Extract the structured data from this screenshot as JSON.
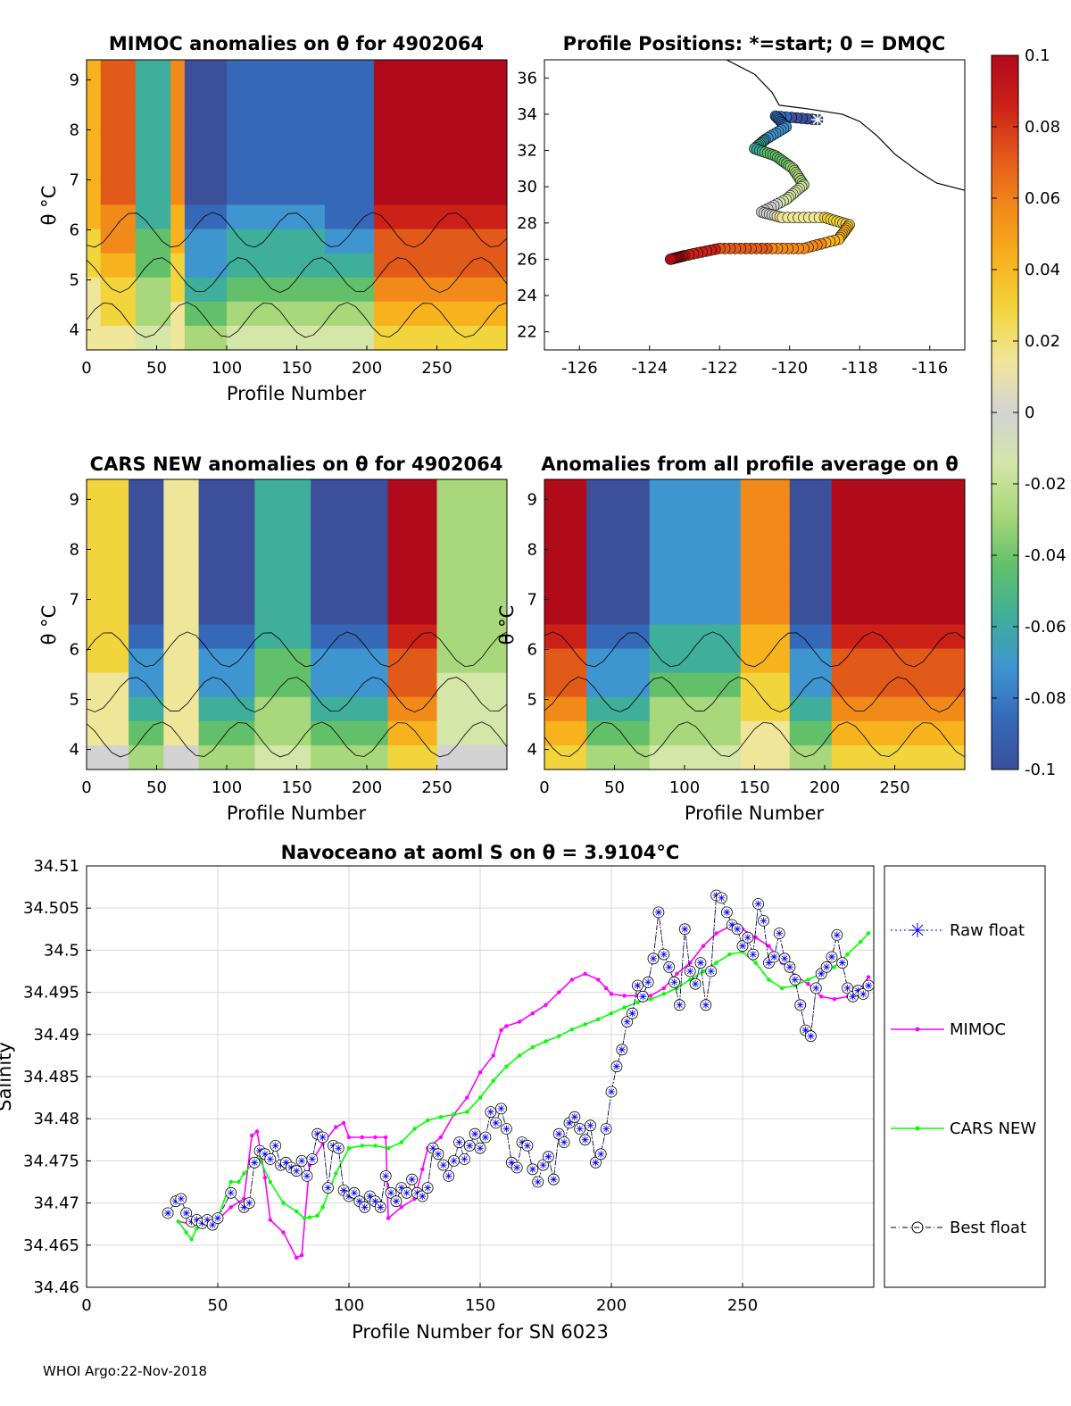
{
  "footer": "WHOI Argo:22-Nov-2018",
  "colors": {
    "line": "#000000",
    "grid": "#d9d9d9",
    "mimoc": "#ff00ff",
    "cars": "#00ff00",
    "raw": "#0000ff",
    "best": "#000000",
    "scale": [
      "#3b4f9a",
      "#3569b8",
      "#3f95d0",
      "#3fae9a",
      "#63c06a",
      "#a9d77b",
      "#d4e6a8",
      "#d3d3d3",
      "#f0e69a",
      "#f2d53d",
      "#f7b21e",
      "#f28a1a",
      "#e25a1a",
      "#cc2118",
      "#b10a1b"
    ]
  },
  "colorbar": {
    "ticks": [
      "0.1",
      "0.08",
      "0.06",
      "0.04",
      "0.02",
      "0",
      "-0.02",
      "-0.04",
      "-0.06",
      "-0.08",
      "-0.1"
    ]
  },
  "chart_data": [
    {
      "type": "heatmap",
      "id": "mimoc_anom",
      "title": "MIMOC anomalies on θ  for 4902064",
      "xlabel": "Profile Number",
      "ylabel": "θ °C",
      "xlim": [
        0,
        300
      ],
      "ylim": [
        3.6,
        9.4
      ],
      "xticks": [
        "0",
        "50",
        "100",
        "150",
        "200",
        "250"
      ],
      "yticks": [
        "4",
        "5",
        "6",
        "7",
        "8",
        "9"
      ],
      "clim": [
        -0.1,
        0.1
      ],
      "bands": [
        {
          "x0": 0,
          "x1": 10,
          "v": 0.04
        },
        {
          "x0": 10,
          "x1": 35,
          "v": 0.07
        },
        {
          "x0": 35,
          "x1": 60,
          "v": -0.06
        },
        {
          "x0": 60,
          "x1": 70,
          "v": 0.05
        },
        {
          "x0": 70,
          "x1": 100,
          "v": -0.1
        },
        {
          "x0": 100,
          "x1": 170,
          "v": -0.08
        },
        {
          "x0": 170,
          "x1": 205,
          "v": -0.09
        },
        {
          "x0": 205,
          "x1": 300,
          "v": 0.1
        }
      ]
    },
    {
      "type": "scatter",
      "id": "positions",
      "title": "Profile Positions: *=start; 0 = DMQC",
      "xlim": [
        -127,
        -115
      ],
      "ylim": [
        21,
        37
      ],
      "xticks": [
        "-126",
        "-124",
        "-122",
        "-120",
        "-118",
        "-116"
      ],
      "yticks": [
        "22",
        "24",
        "26",
        "28",
        "30",
        "32",
        "34",
        "36"
      ],
      "coast": [
        [
          -121.8,
          37.0
        ],
        [
          -121.0,
          36.2
        ],
        [
          -120.5,
          35.2
        ],
        [
          -120.3,
          34.5
        ],
        [
          -119.5,
          34.3
        ],
        [
          -118.5,
          34.0
        ],
        [
          -118.0,
          33.6
        ],
        [
          -117.5,
          32.8
        ],
        [
          -117.0,
          31.8
        ],
        [
          -116.3,
          30.8
        ],
        [
          -115.8,
          30.2
        ],
        [
          -115.0,
          29.8
        ]
      ],
      "track": [
        {
          "lon": -119.2,
          "lat": 33.7
        },
        {
          "lon": -120.4,
          "lat": 33.9
        },
        {
          "lon": -120.1,
          "lat": 33.3
        },
        {
          "lon": -120.7,
          "lat": 32.6
        },
        {
          "lon": -121.0,
          "lat": 32.1
        },
        {
          "lon": -120.4,
          "lat": 31.7
        },
        {
          "lon": -119.9,
          "lat": 31.0
        },
        {
          "lon": -119.6,
          "lat": 30.1
        },
        {
          "lon": -120.1,
          "lat": 29.3
        },
        {
          "lon": -120.8,
          "lat": 28.6
        },
        {
          "lon": -120.2,
          "lat": 28.3
        },
        {
          "lon": -119.0,
          "lat": 28.3
        },
        {
          "lon": -118.3,
          "lat": 27.9
        },
        {
          "lon": -118.6,
          "lat": 27.1
        },
        {
          "lon": -119.6,
          "lat": 26.6
        },
        {
          "lon": -120.8,
          "lat": 26.6
        },
        {
          "lon": -122.0,
          "lat": 26.6
        },
        {
          "lon": -123.0,
          "lat": 26.2
        },
        {
          "lon": -123.4,
          "lat": 26.0
        }
      ]
    },
    {
      "type": "heatmap",
      "id": "cars_anom",
      "title": "CARS NEW anomalies on θ for 4902064",
      "xlabel": "Profile Number",
      "ylabel": "θ °C",
      "xlim": [
        0,
        300
      ],
      "ylim": [
        3.6,
        9.4
      ],
      "xticks": [
        "0",
        "50",
        "100",
        "150",
        "200",
        "250"
      ],
      "yticks": [
        "4",
        "5",
        "6",
        "7",
        "8",
        "9"
      ],
      "clim": [
        -0.1,
        0.1
      ],
      "bands": [
        {
          "x0": 0,
          "x1": 30,
          "v": 0.03
        },
        {
          "x0": 30,
          "x1": 55,
          "v": -0.1
        },
        {
          "x0": 55,
          "x1": 80,
          "v": 0.02
        },
        {
          "x0": 80,
          "x1": 120,
          "v": -0.1
        },
        {
          "x0": 120,
          "x1": 160,
          "v": -0.06
        },
        {
          "x0": 160,
          "x1": 215,
          "v": -0.1
        },
        {
          "x0": 215,
          "x1": 250,
          "v": 0.1
        },
        {
          "x0": 250,
          "x1": 300,
          "v": -0.03
        }
      ]
    },
    {
      "type": "heatmap",
      "id": "avg_anom",
      "title": "Anomalies from all profile average on θ",
      "xlabel": "Profile Number",
      "ylabel": "θ °C",
      "xlim": [
        0,
        300
      ],
      "ylim": [
        3.6,
        9.4
      ],
      "xticks": [
        "0",
        "50",
        "100",
        "150",
        "200",
        "250"
      ],
      "yticks": [
        "4",
        "5",
        "6",
        "7",
        "8",
        "9"
      ],
      "clim": [
        -0.1,
        0.1
      ],
      "bands": [
        {
          "x0": 0,
          "x1": 30,
          "v": 0.1
        },
        {
          "x0": 30,
          "x1": 75,
          "v": -0.1
        },
        {
          "x0": 75,
          "x1": 140,
          "v": -0.07
        },
        {
          "x0": 140,
          "x1": 175,
          "v": 0.05
        },
        {
          "x0": 175,
          "x1": 205,
          "v": -0.1
        },
        {
          "x0": 205,
          "x1": 300,
          "v": 0.1
        }
      ]
    },
    {
      "type": "line",
      "id": "salinity",
      "title": "Navoceano at aoml S on θ = 3.9104°C",
      "xlabel": "Profile Number for SN 6023",
      "ylabel": "Salinity",
      "xlim": [
        0,
        300
      ],
      "ylim": [
        34.46,
        34.51
      ],
      "xticks": [
        "0",
        "50",
        "100",
        "150",
        "200",
        "250"
      ],
      "yticks": [
        "34.46",
        "34.465",
        "34.47",
        "34.475",
        "34.48",
        "34.485",
        "34.49",
        "34.495",
        "34.5",
        "34.505",
        "34.51"
      ],
      "legend": [
        "Raw float",
        "MIMOC",
        "CARS NEW",
        "Best float"
      ],
      "series": [
        {
          "name": "MIMOC",
          "x": [
            35,
            40,
            45,
            50,
            55,
            60,
            63,
            65,
            68,
            70,
            75,
            80,
            82,
            85,
            90,
            95,
            98,
            100,
            105,
            110,
            114,
            115,
            120,
            125,
            128,
            130,
            135,
            140,
            145,
            150,
            155,
            158,
            160,
            165,
            170,
            175,
            180,
            185,
            190,
            195,
            198,
            200,
            205,
            210,
            215,
            220,
            225,
            230,
            235,
            240,
            245,
            250,
            255,
            260,
            265,
            268,
            270,
            275,
            280,
            285,
            290,
            295,
            298
          ],
          "y": [
            34.4678,
            34.4675,
            34.4675,
            34.468,
            34.4695,
            34.4705,
            34.478,
            34.4785,
            34.473,
            34.468,
            34.4665,
            34.4635,
            34.4638,
            34.4745,
            34.477,
            34.479,
            34.4795,
            34.4778,
            34.4778,
            34.4778,
            34.4778,
            34.4682,
            34.4695,
            34.4705,
            34.474,
            34.4765,
            34.4778,
            34.4805,
            34.4825,
            34.4855,
            34.4875,
            34.4905,
            34.491,
            34.4915,
            34.4925,
            34.4935,
            34.495,
            34.4965,
            34.4972,
            34.4965,
            34.4955,
            34.4948,
            34.4946,
            34.4946,
            34.4946,
            34.4955,
            34.4972,
            34.4985,
            34.5005,
            34.502,
            34.5028,
            34.5025,
            34.5015,
            34.5005,
            34.4985,
            34.4978,
            34.497,
            34.496,
            34.4945,
            34.4942,
            34.4945,
            34.4955,
            34.4968
          ]
        },
        {
          "name": "CARS NEW",
          "x": [
            35,
            38,
            40,
            42,
            45,
            50,
            55,
            58,
            60,
            63,
            66,
            70,
            75,
            80,
            83,
            85,
            88,
            90,
            95,
            100,
            105,
            110,
            115,
            120,
            125,
            130,
            135,
            140,
            145,
            150,
            155,
            160,
            165,
            170,
            175,
            180,
            185,
            190,
            195,
            200,
            205,
            210,
            215,
            220,
            225,
            230,
            235,
            240,
            245,
            250,
            255,
            260,
            265,
            270,
            275,
            280,
            285,
            290,
            295,
            298
          ],
          "y": [
            34.4678,
            34.4665,
            34.4657,
            34.467,
            34.4678,
            34.4682,
            34.4725,
            34.4725,
            34.4735,
            34.4745,
            34.4752,
            34.4725,
            34.47,
            34.469,
            34.4682,
            34.4683,
            34.4685,
            34.4695,
            34.4735,
            34.4765,
            34.4768,
            34.4768,
            34.4765,
            34.4772,
            34.4788,
            34.4798,
            34.4802,
            34.4805,
            34.4808,
            34.4825,
            34.4845,
            34.4862,
            34.4875,
            34.4885,
            34.4892,
            34.4898,
            34.4906,
            34.4912,
            34.4918,
            34.4925,
            34.4932,
            34.4938,
            34.4942,
            34.4948,
            34.4955,
            34.4965,
            34.4975,
            34.4985,
            34.4995,
            34.4998,
            34.4985,
            34.4965,
            34.4955,
            34.4958,
            34.4965,
            34.4972,
            34.498,
            34.4995,
            34.501,
            34.502
          ]
        },
        {
          "name": "Best float",
          "x": [
            31,
            34,
            36,
            38,
            40,
            42,
            44,
            46,
            48,
            50,
            55,
            60,
            62,
            64,
            66,
            68,
            70,
            72,
            74,
            76,
            78,
            80,
            82,
            84,
            86,
            88,
            90,
            92,
            94,
            96,
            98,
            100,
            102,
            104,
            106,
            108,
            110,
            112,
            114,
            116,
            118,
            120,
            122,
            124,
            126,
            128,
            130,
            132,
            134,
            136,
            138,
            140,
            142,
            144,
            146,
            148,
            150,
            152,
            154,
            156,
            158,
            160,
            162,
            164,
            166,
            168,
            170,
            172,
            174,
            176,
            178,
            180,
            182,
            184,
            186,
            188,
            190,
            192,
            194,
            196,
            198,
            200,
            202,
            204,
            206,
            208,
            210,
            212,
            214,
            216,
            218,
            220,
            222,
            224,
            226,
            228,
            230,
            232,
            234,
            236,
            238,
            240,
            242,
            244,
            246,
            248,
            250,
            252,
            254,
            256,
            258,
            260,
            262,
            264,
            266,
            268,
            270,
            272,
            274,
            276,
            278,
            280,
            282,
            284,
            286,
            288,
            290,
            292,
            294,
            296,
            298
          ],
          "y": [
            34.4688,
            34.4702,
            34.4705,
            34.4688,
            34.4678,
            34.468,
            34.4676,
            34.468,
            34.4674,
            34.4682,
            34.4712,
            34.4695,
            34.47,
            34.4748,
            34.4762,
            34.4758,
            34.4752,
            34.4768,
            34.4745,
            34.4748,
            34.4742,
            34.4738,
            34.475,
            34.4732,
            34.4752,
            34.4782,
            34.4778,
            34.4718,
            34.4768,
            34.4765,
            34.4715,
            34.4708,
            34.4712,
            34.4702,
            34.4695,
            34.4708,
            34.4702,
            34.4695,
            34.4732,
            34.4712,
            34.4702,
            34.4718,
            34.4712,
            34.4728,
            34.4712,
            34.4708,
            34.4718,
            34.4765,
            34.4758,
            34.4745,
            34.4732,
            34.475,
            34.4772,
            34.4752,
            34.4768,
            34.4782,
            34.4765,
            34.4778,
            34.4808,
            34.4795,
            34.4812,
            34.4788,
            34.4748,
            34.4742,
            34.4772,
            34.4768,
            34.474,
            34.4725,
            34.4745,
            34.4755,
            34.4728,
            34.4782,
            34.4772,
            34.4795,
            34.4802,
            34.4788,
            34.4775,
            34.4792,
            34.4748,
            34.4758,
            34.4788,
            34.4832,
            34.4862,
            34.4882,
            34.4915,
            34.4925,
            34.4958,
            34.4945,
            34.4962,
            34.499,
            34.5045,
            34.4995,
            34.498,
            34.4962,
            34.4935,
            34.5025,
            34.4975,
            34.496,
            34.4985,
            34.4935,
            34.4975,
            34.5065,
            34.5062,
            34.5045,
            34.503,
            34.5025,
            34.5005,
            34.5015,
            34.4995,
            34.5055,
            34.5035,
            34.4985,
            34.4992,
            34.502,
            34.499,
            34.498,
            34.4965,
            34.4935,
            34.4905,
            34.4898,
            34.4955,
            34.4972,
            34.498,
            34.4992,
            34.5018,
            34.4985,
            34.4955,
            34.4945,
            34.4952,
            34.4948,
            34.4958
          ]
        }
      ]
    }
  ]
}
